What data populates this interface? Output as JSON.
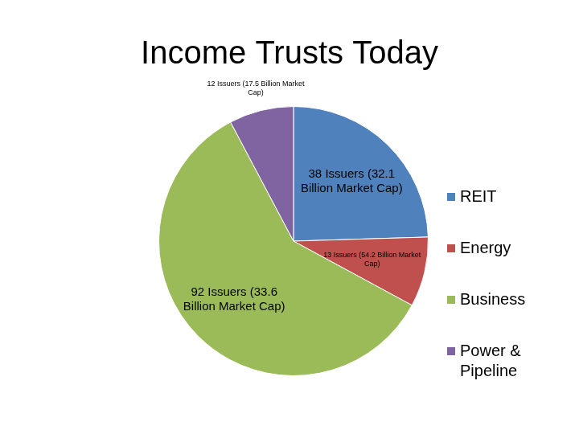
{
  "chart_data": {
    "type": "pie",
    "title": "Income Trusts Today",
    "categories": [
      "REIT",
      "Energy",
      "Business",
      "Power & Pipeline"
    ],
    "values": [
      38,
      13,
      92,
      12
    ],
    "value_labels": [
      "38 Issuers (32.1 Billion Market Cap)",
      "13 Issuers (54.2 Billion Market Cap)",
      "92 Issuers (33.6 Billion Market Cap)",
      "12 Issuers (17.5 Billion Market Cap)"
    ],
    "colors": [
      "#4f81bd",
      "#c0504d",
      "#9bbb59",
      "#8064a2"
    ],
    "data_labels": true,
    "legend": "right"
  }
}
